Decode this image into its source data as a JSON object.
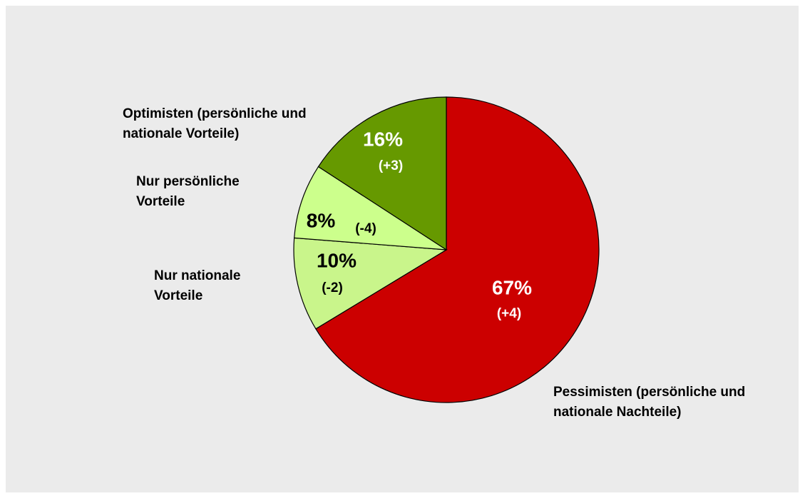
{
  "chart_data": {
    "type": "pie",
    "categories": [
      "Pessimisten (persönliche und nationale Nachteile)",
      "Nur nationale Vorteile",
      "Nur persönliche Vorteile",
      "Optimisten (persönliche und nationale Vorteile)"
    ],
    "values": [
      67,
      10,
      8,
      16
    ],
    "value_labels": [
      "67%",
      "10%",
      "8%",
      "16%"
    ],
    "delta_labels": [
      "(+4)",
      "(-2)",
      "(-4)",
      "(+3)"
    ],
    "colors": [
      "#cc0000",
      "#c9f58b",
      "#ccff8c",
      "#669900"
    ]
  }
}
